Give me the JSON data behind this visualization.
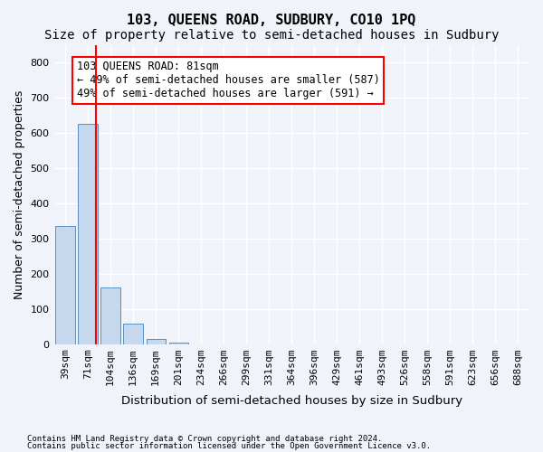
{
  "title": "103, QUEENS ROAD, SUDBURY, CO10 1PQ",
  "subtitle": "Size of property relative to semi-detached houses in Sudbury",
  "xlabel": "Distribution of semi-detached houses by size in Sudbury",
  "ylabel": "Number of semi-detached properties",
  "footnote1": "Contains HM Land Registry data © Crown copyright and database right 2024.",
  "footnote2": "Contains public sector information licensed under the Open Government Licence v3.0.",
  "annotation_line1": "103 QUEENS ROAD: 81sqm",
  "annotation_line2": "← 49% of semi-detached houses are smaller (587)",
  "annotation_line3": "49% of semi-detached houses are larger (591) →",
  "bar_labels": [
    "39sqm",
    "71sqm",
    "104sqm",
    "136sqm",
    "169sqm",
    "201sqm",
    "234sqm",
    "266sqm",
    "299sqm",
    "331sqm",
    "364sqm",
    "396sqm",
    "429sqm",
    "461sqm",
    "493sqm",
    "526sqm",
    "558sqm",
    "591sqm",
    "623sqm",
    "656sqm",
    "688sqm"
  ],
  "bar_values": [
    335,
    625,
    160,
    58,
    15,
    5,
    0,
    0,
    0,
    0,
    0,
    0,
    0,
    0,
    0,
    0,
    0,
    0,
    0,
    0,
    0
  ],
  "bar_color": "#c5d8ed",
  "bar_edge_color": "#5a8fc0",
  "red_line_x": 1.35,
  "property_sqm": 81,
  "ylim": [
    0,
    850
  ],
  "yticks": [
    0,
    100,
    200,
    300,
    400,
    500,
    600,
    700,
    800
  ],
  "background_color": "#f0f4fa",
  "grid_color": "#ffffff",
  "title_fontsize": 11,
  "subtitle_fontsize": 10,
  "axis_label_fontsize": 9,
  "tick_fontsize": 8,
  "annotation_fontsize": 8.5
}
